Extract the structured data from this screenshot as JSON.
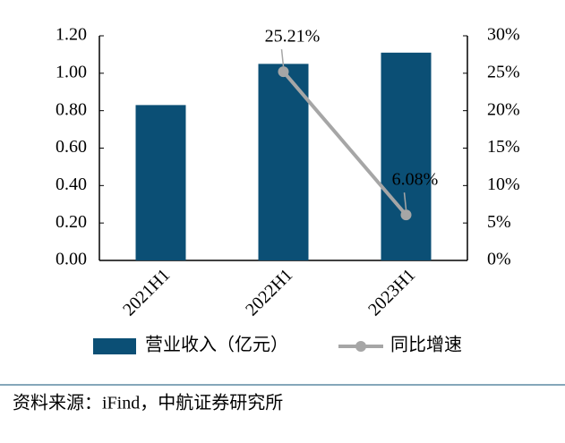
{
  "chart_data": {
    "type": "bar-line",
    "categories": [
      "2021H1",
      "2022H1",
      "2023H1"
    ],
    "series": [
      {
        "name": "营业收入（亿元）",
        "type": "bar",
        "color": "#0b4f75",
        "values": [
          0.83,
          1.05,
          1.11
        ]
      },
      {
        "name": "同比增速",
        "type": "line",
        "axis": "y2",
        "color": "#a6a6a6",
        "values": [
          null,
          25.21,
          6.08
        ],
        "value_labels": [
          null,
          "25.21%",
          "6.08%"
        ]
      }
    ],
    "ylim": [
      0,
      1.2
    ],
    "yticks": [
      {
        "value": 0,
        "label": "0.00"
      },
      {
        "value": 0.2,
        "label": "0.20"
      },
      {
        "value": 0.4,
        "label": "0.40"
      },
      {
        "value": 0.6,
        "label": "0.60"
      },
      {
        "value": 0.8,
        "label": "0.80"
      },
      {
        "value": 1.0,
        "label": "1.00"
      },
      {
        "value": 1.2,
        "label": "1.20"
      }
    ],
    "y2lim": [
      0,
      30
    ],
    "y2ticks": [
      {
        "value": 0,
        "label": "0%"
      },
      {
        "value": 5,
        "label": "5%"
      },
      {
        "value": 10,
        "label": "10%"
      },
      {
        "value": 15,
        "label": "15%"
      },
      {
        "value": 20,
        "label": "20%"
      },
      {
        "value": 25,
        "label": "25%"
      },
      {
        "value": 30,
        "label": "30%"
      }
    ],
    "legend": "bottom",
    "source": "资料来源：iFind，中航证券研究所"
  }
}
